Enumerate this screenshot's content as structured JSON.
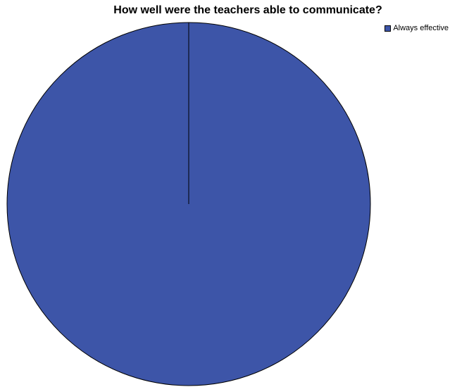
{
  "chart_data": {
    "type": "pie",
    "title": "How well were the teachers able to communicate?",
    "categories": [
      "Always effective"
    ],
    "values": [
      100
    ],
    "colors": [
      "#3d55a8"
    ],
    "legend": {
      "position": "top-right"
    }
  }
}
